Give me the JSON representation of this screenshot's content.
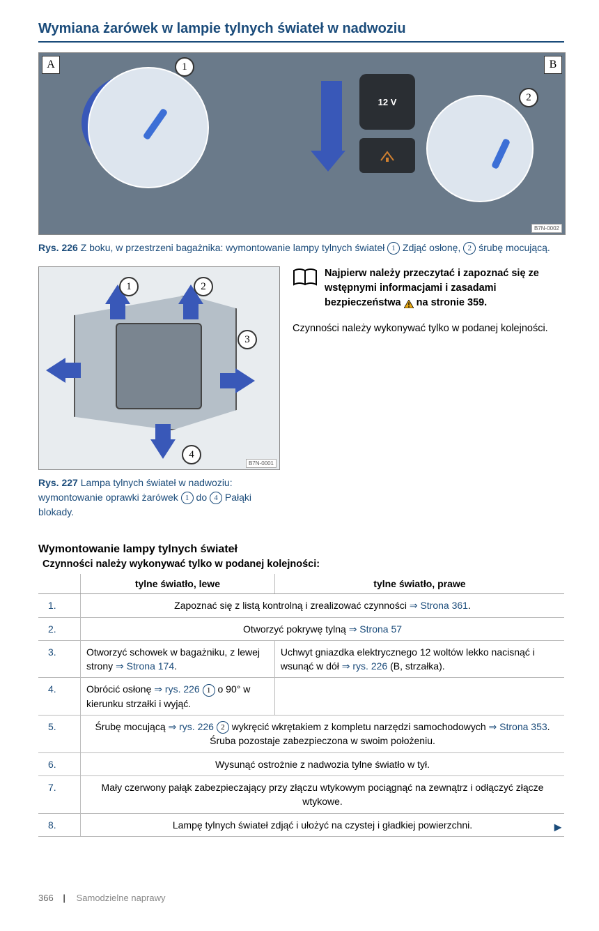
{
  "colors": {
    "heading": "#1a4b7a",
    "arrow": "#3958b8",
    "text": "#000000",
    "border": "#999999",
    "footer": "#888888"
  },
  "title": "Wymiana żarówek w lampie tylnych świateł w nadwoziu",
  "fig226": {
    "labelA": "A",
    "labelB": "B",
    "badge1": "1",
    "badge2": "2",
    "socket": "12 V",
    "code": "B7N-0002",
    "caption_rys": "Rys. 226",
    "caption_pre": "  Z boku, w przestrzeni bagażnika: wymontowanie lampy tylnych świateł ",
    "caption_mid": " Zdjąć osłonę, ",
    "caption_end": " śrubę mocującą.",
    "b1": "1",
    "b2": "2"
  },
  "fig227": {
    "badge1": "1",
    "badge2": "2",
    "badge3": "3",
    "badge4": "4",
    "code": "B7N-0001",
    "caption_rys": "Rys. 227",
    "caption_pre": "  Lampa tylnych świateł w nadwoziu: wymontowanie oprawki żarówek ",
    "caption_mid": " do ",
    "caption_end": " Pałąki blokady.",
    "b1": "1",
    "b4": "4"
  },
  "note": {
    "line": "Najpierw należy przeczytać i zapoznać się ze wstępnymi informacjami i zasadami bezpieczeństwa ",
    "page": " na stronie 359."
  },
  "bodytext": "Czynności należy wykonywać tylko w podanej kolejności.",
  "subhead": "Wymontowanie lampy tylnych świateł",
  "subhead2": "Czynności należy wykonywać tylko w podanej kolejności:",
  "table": {
    "h_left": "tylne światło, lewe",
    "h_right": "tylne światło, prawe",
    "rows": [
      {
        "n": "1.",
        "span": true,
        "text_a": "Zapoznać się z listą kontrolną i zrealizować czynności ",
        "link": "⇒ Strona 361",
        "text_b": "."
      },
      {
        "n": "2.",
        "span": true,
        "text_a": "Otworzyć pokrywę tylną ",
        "link": "⇒ Strona 57",
        "text_b": ""
      },
      {
        "n": "3.",
        "span": false,
        "left_a": "Otworzyć schowek w bagażniku, z lewej strony ",
        "left_link": "⇒ Strona 174",
        "left_b": ".",
        "right_a": "Uchwyt gniazdka elektrycznego 12 woltów lekko nacisnąć i wsunąć w dół ",
        "right_link": "⇒ rys. 226",
        "right_b": " (B, strzałka)."
      },
      {
        "n": "4.",
        "span": false,
        "left_a": "Obrócić osłonę ",
        "left_link": "⇒ rys. 226",
        "left_badge": "1",
        "left_b": " o 90° w kierunku strzałki i wyjąć.",
        "right_a": "",
        "right_link": "",
        "right_b": ""
      },
      {
        "n": "5.",
        "span": true,
        "text_a": "Śrubę mocującą ",
        "link": "⇒ rys. 226",
        "badge": "2",
        "text_b": " wykręcić wkrętakiem z kompletu narzędzi samochodowych ",
        "link2": "⇒ Strona 353",
        "text_c": ". Śruba pozostaje zabezpieczona w swoim położeniu."
      },
      {
        "n": "6.",
        "span": true,
        "text_a": "Wysunąć ostrożnie z nadwozia tylne światło w tył.",
        "link": "",
        "text_b": ""
      },
      {
        "n": "7.",
        "span": true,
        "text_a": "Mały czerwony pałąk zabezpieczający przy złączu wtykowym pociągnąć na zewnątrz i odłączyć złącze wtykowe.",
        "link": "",
        "text_b": ""
      },
      {
        "n": "8.",
        "span": true,
        "text_a": "Lampę tylnych świateł zdjąć i ułożyć na czystej i gładkiej powierzchni.",
        "link": "",
        "text_b": ""
      }
    ]
  },
  "footer": {
    "page": "366",
    "section": "Samodzielne naprawy"
  }
}
